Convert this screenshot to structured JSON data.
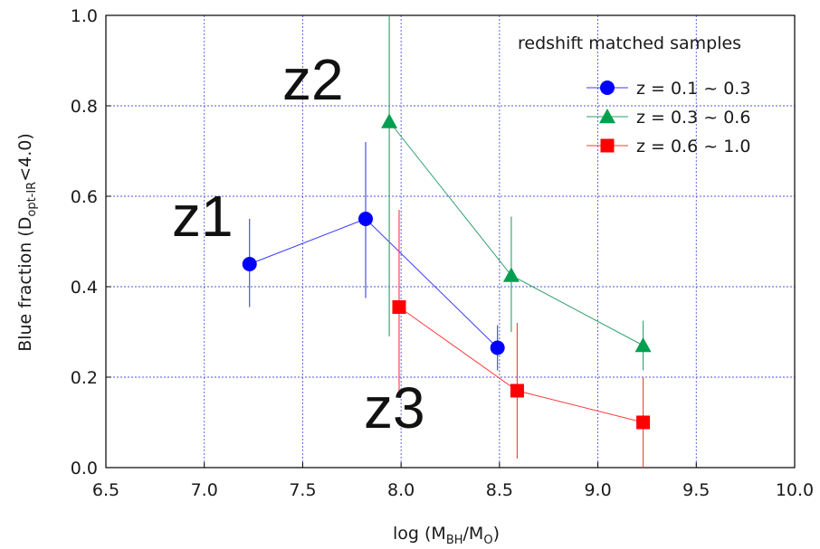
{
  "chart_data": {
    "type": "scatter",
    "xlabel": {
      "prefix": "log (M",
      "sub1": "BH",
      "mid": "/M",
      "sub2": "O",
      "suffix": ")"
    },
    "ylabel": {
      "prefix": "Blue fraction  (D",
      "sub": "opt-IR",
      "suffix": "<4.0)"
    },
    "xlim": [
      6.5,
      10.0
    ],
    "ylim": [
      0.0,
      1.0
    ],
    "x_ticks": [
      "6.5",
      "7.0",
      "7.5",
      "8.0",
      "8.5",
      "9.0",
      "9.5",
      "10.0"
    ],
    "y_ticks": [
      "0.0",
      "0.2",
      "0.4",
      "0.6",
      "0.8",
      "1.0"
    ],
    "grid": true,
    "legend_title": "redshift matched samples",
    "legend_position": "top-right",
    "series": [
      {
        "name": "z = 0.1 ~ 0.3",
        "color": "#0000ff",
        "line_color": "#3a3aff",
        "marker": "circle",
        "x": [
          7.23,
          7.82,
          8.49
        ],
        "y": [
          0.45,
          0.55,
          0.265
        ],
        "err_low": [
          0.355,
          0.375,
          0.215
        ],
        "err_high": [
          0.55,
          0.72,
          0.315
        ]
      },
      {
        "name": "z = 0.3 ~ 0.6",
        "color": "#00a050",
        "line_color": "#2e9e6a",
        "marker": "triangle",
        "x": [
          7.94,
          8.56,
          9.23
        ],
        "y": [
          0.765,
          0.425,
          0.27
        ],
        "err_low": [
          0.29,
          0.3,
          0.215
        ],
        "err_high": [
          1.0,
          0.555,
          0.325
        ]
      },
      {
        "name": "z = 0.6 ~ 1.0",
        "color": "#ff0000",
        "line_color": "#ff3a3a",
        "marker": "square",
        "x": [
          7.99,
          8.59,
          9.23
        ],
        "y": [
          0.355,
          0.17,
          0.1
        ],
        "err_low": [
          0.17,
          0.02,
          0.0
        ],
        "err_high": [
          0.57,
          0.32,
          0.2
        ]
      }
    ],
    "annotations": [
      "z1",
      "z2",
      "z3"
    ]
  }
}
